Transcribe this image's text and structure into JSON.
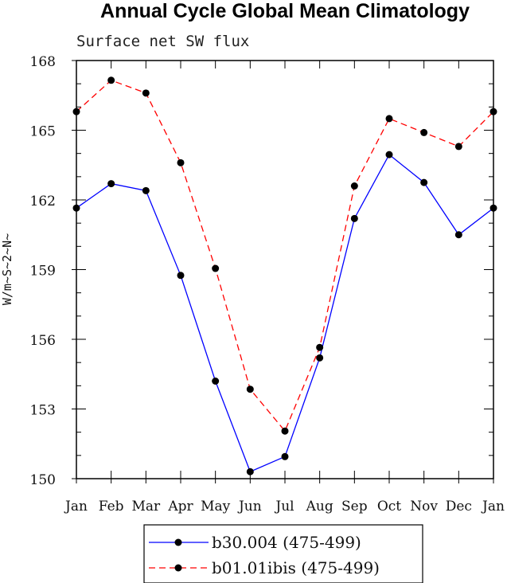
{
  "chart_data": {
    "type": "line",
    "title": "Annual Cycle Global Mean Climatology",
    "subtitle": "Surface net SW flux",
    "xlabel": "",
    "ylabel": "W/m~S~2~N~",
    "categories": [
      "Jan",
      "Feb",
      "Mar",
      "Apr",
      "May",
      "Jun",
      "Jul",
      "Aug",
      "Sep",
      "Oct",
      "Nov",
      "Dec",
      "Jan"
    ],
    "ylim": [
      150,
      168
    ],
    "yticks": [
      150,
      153,
      156,
      159,
      162,
      165,
      168
    ],
    "grid": false,
    "legend_position": "bottom",
    "series": [
      {
        "name": "b30.004 (475-499)",
        "color": "#0000ff",
        "dash": "solid",
        "marker": "circle",
        "values": [
          161.65,
          162.7,
          162.4,
          158.75,
          154.2,
          150.3,
          150.95,
          155.2,
          161.2,
          163.95,
          162.75,
          160.5,
          161.65
        ]
      },
      {
        "name": "b01.01ibis (475-499)",
        "color": "#ff0000",
        "dash": "dashed",
        "marker": "circle",
        "values": [
          165.8,
          167.15,
          166.6,
          163.6,
          159.05,
          153.85,
          152.05,
          155.65,
          162.6,
          165.5,
          164.9,
          164.3,
          165.8
        ]
      }
    ]
  }
}
